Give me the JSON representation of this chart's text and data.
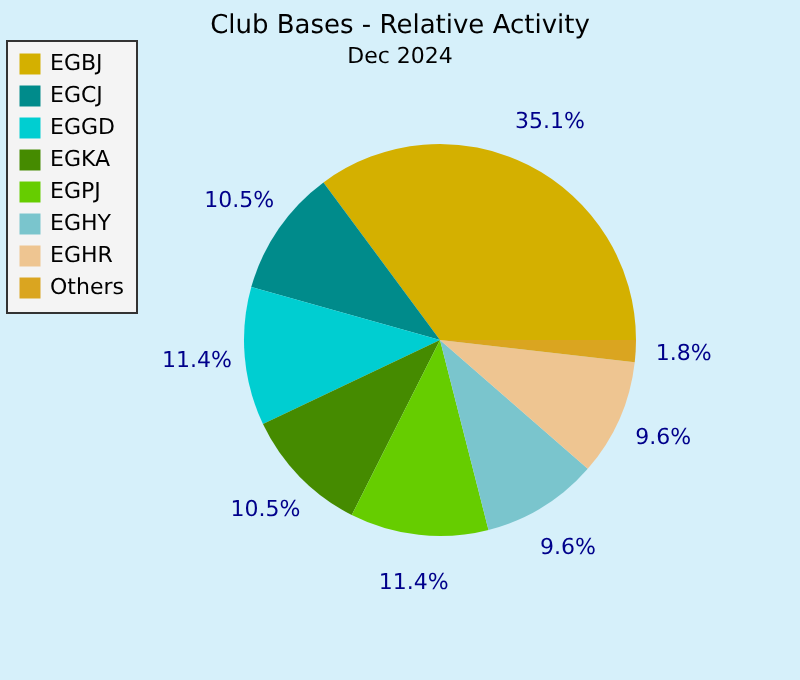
{
  "chart_data": {
    "type": "pie",
    "title": "Club Bases - Relative Activity",
    "subtitle": "Dec 2024",
    "categories": [
      "EGBJ",
      "EGCJ",
      "EGGD",
      "EGKA",
      "EGPJ",
      "EGHY",
      "EGHR",
      "Others"
    ],
    "values": [
      35.1,
      10.5,
      11.4,
      10.5,
      11.4,
      9.6,
      9.6,
      1.8
    ],
    "value_labels": [
      "35.1%",
      "10.5%",
      "11.4%",
      "10.5%",
      "11.4%",
      "9.6%",
      "9.6%",
      "1.8%"
    ],
    "colors": [
      "#d4b000",
      "#008b8b",
      "#00ced1",
      "#458b00",
      "#66cd00",
      "#7ac5cd",
      "#eec591",
      "#daa520"
    ],
    "legend": "top left"
  }
}
